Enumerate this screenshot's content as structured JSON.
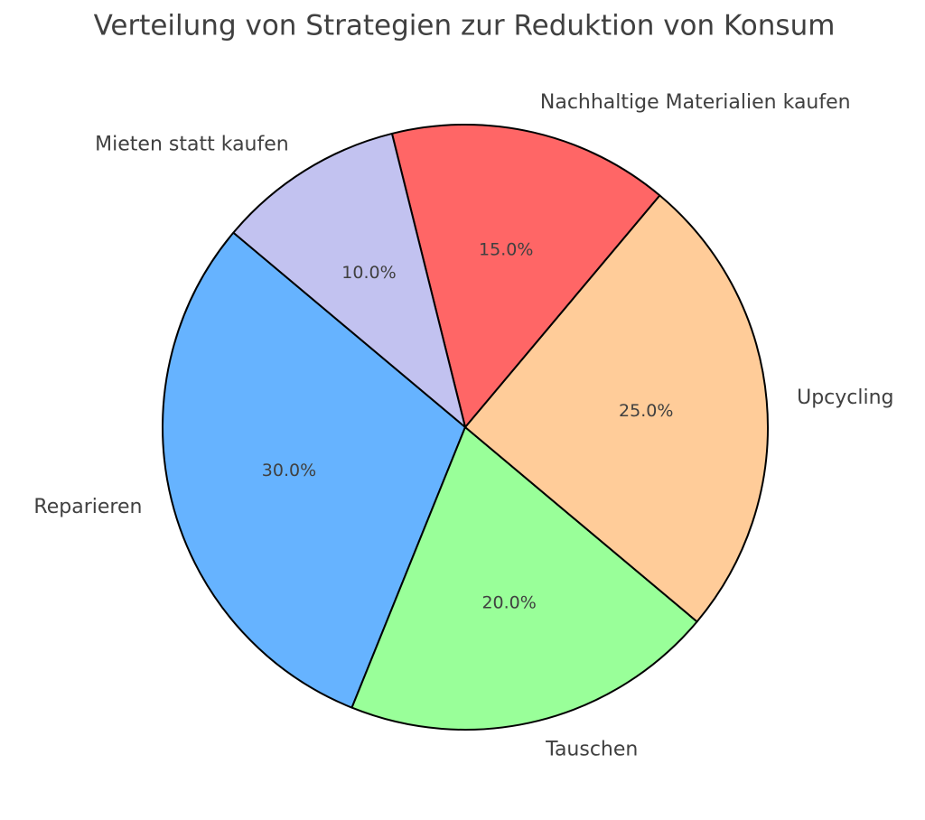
{
  "chart_data": {
    "type": "pie",
    "title": "Verteilung von Strategien zur Reduktion von Konsum",
    "categories": [
      "Reparieren",
      "Tauschen",
      "Upcycling",
      "Nachhaltige Materialien kaufen",
      "Mieten statt kaufen"
    ],
    "values": [
      30,
      20,
      25,
      15,
      10
    ],
    "value_labels": [
      "30.0%",
      "20.0%",
      "25.0%",
      "15.0%",
      "10.0%"
    ],
    "colors": [
      "#66b3ff",
      "#99ff99",
      "#ffcc99",
      "#ff6666",
      "#c2c2f0"
    ]
  }
}
